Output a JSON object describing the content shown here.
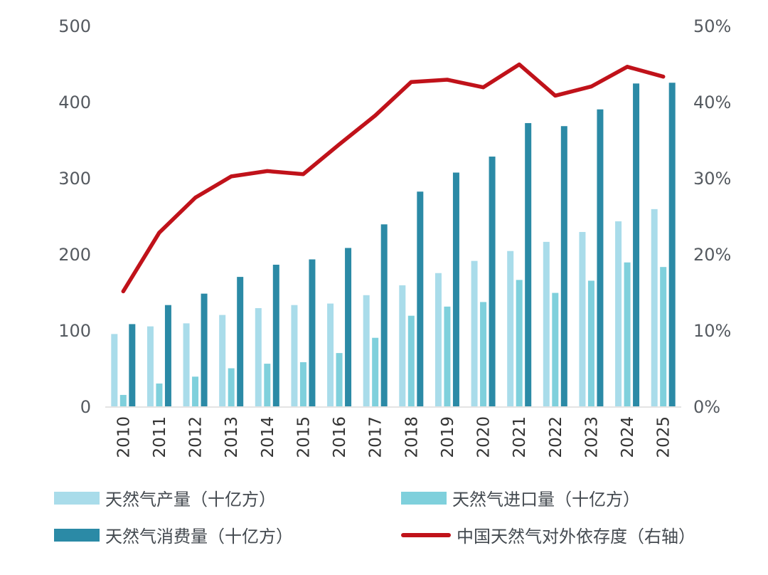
{
  "chart_data": {
    "type": "bar+line",
    "categories": [
      "2010",
      "2011",
      "2012",
      "2013",
      "2014",
      "2015",
      "2016",
      "2017",
      "2018",
      "2019",
      "2020",
      "2021",
      "2022",
      "2023",
      "2024",
      "2025"
    ],
    "series": [
      {
        "name": "天然气产量（十亿方）",
        "type": "bar",
        "axis": "left",
        "color": "#a9dcea",
        "values": [
          95,
          105,
          109,
          120,
          129,
          133,
          135,
          146,
          159,
          175,
          191,
          204,
          216,
          229,
          243,
          259
        ]
      },
      {
        "name": "天然气进口量（十亿方）",
        "type": "bar",
        "axis": "left",
        "color": "#7fd0dc",
        "values": [
          15,
          30,
          39,
          50,
          56,
          58,
          70,
          90,
          119,
          131,
          137,
          166,
          149,
          165,
          189,
          183
        ]
      },
      {
        "name": "天然气消费量（十亿方）",
        "type": "bar",
        "axis": "left",
        "color": "#2b8aa6",
        "values": [
          108,
          133,
          148,
          170,
          186,
          193,
          208,
          239,
          282,
          307,
          328,
          372,
          368,
          390,
          424,
          425
        ]
      },
      {
        "name": "中国天然气对外依存度（右轴）",
        "type": "line",
        "axis": "right",
        "color": "#c0121a",
        "values": [
          15.1,
          22.8,
          27.4,
          30.2,
          30.9,
          30.5,
          34.4,
          38.2,
          42.6,
          42.9,
          41.9,
          44.9,
          40.8,
          42.0,
          44.6,
          43.3
        ]
      }
    ],
    "left_axis": {
      "ylim": [
        0,
        500
      ],
      "ticks": [
        "0",
        "100",
        "200",
        "300",
        "400",
        "500"
      ]
    },
    "right_axis": {
      "ylim": [
        0,
        50
      ],
      "ticks": [
        "0%",
        "10%",
        "20%",
        "30%",
        "40%",
        "50%"
      ]
    },
    "legend_position": "bottom"
  }
}
